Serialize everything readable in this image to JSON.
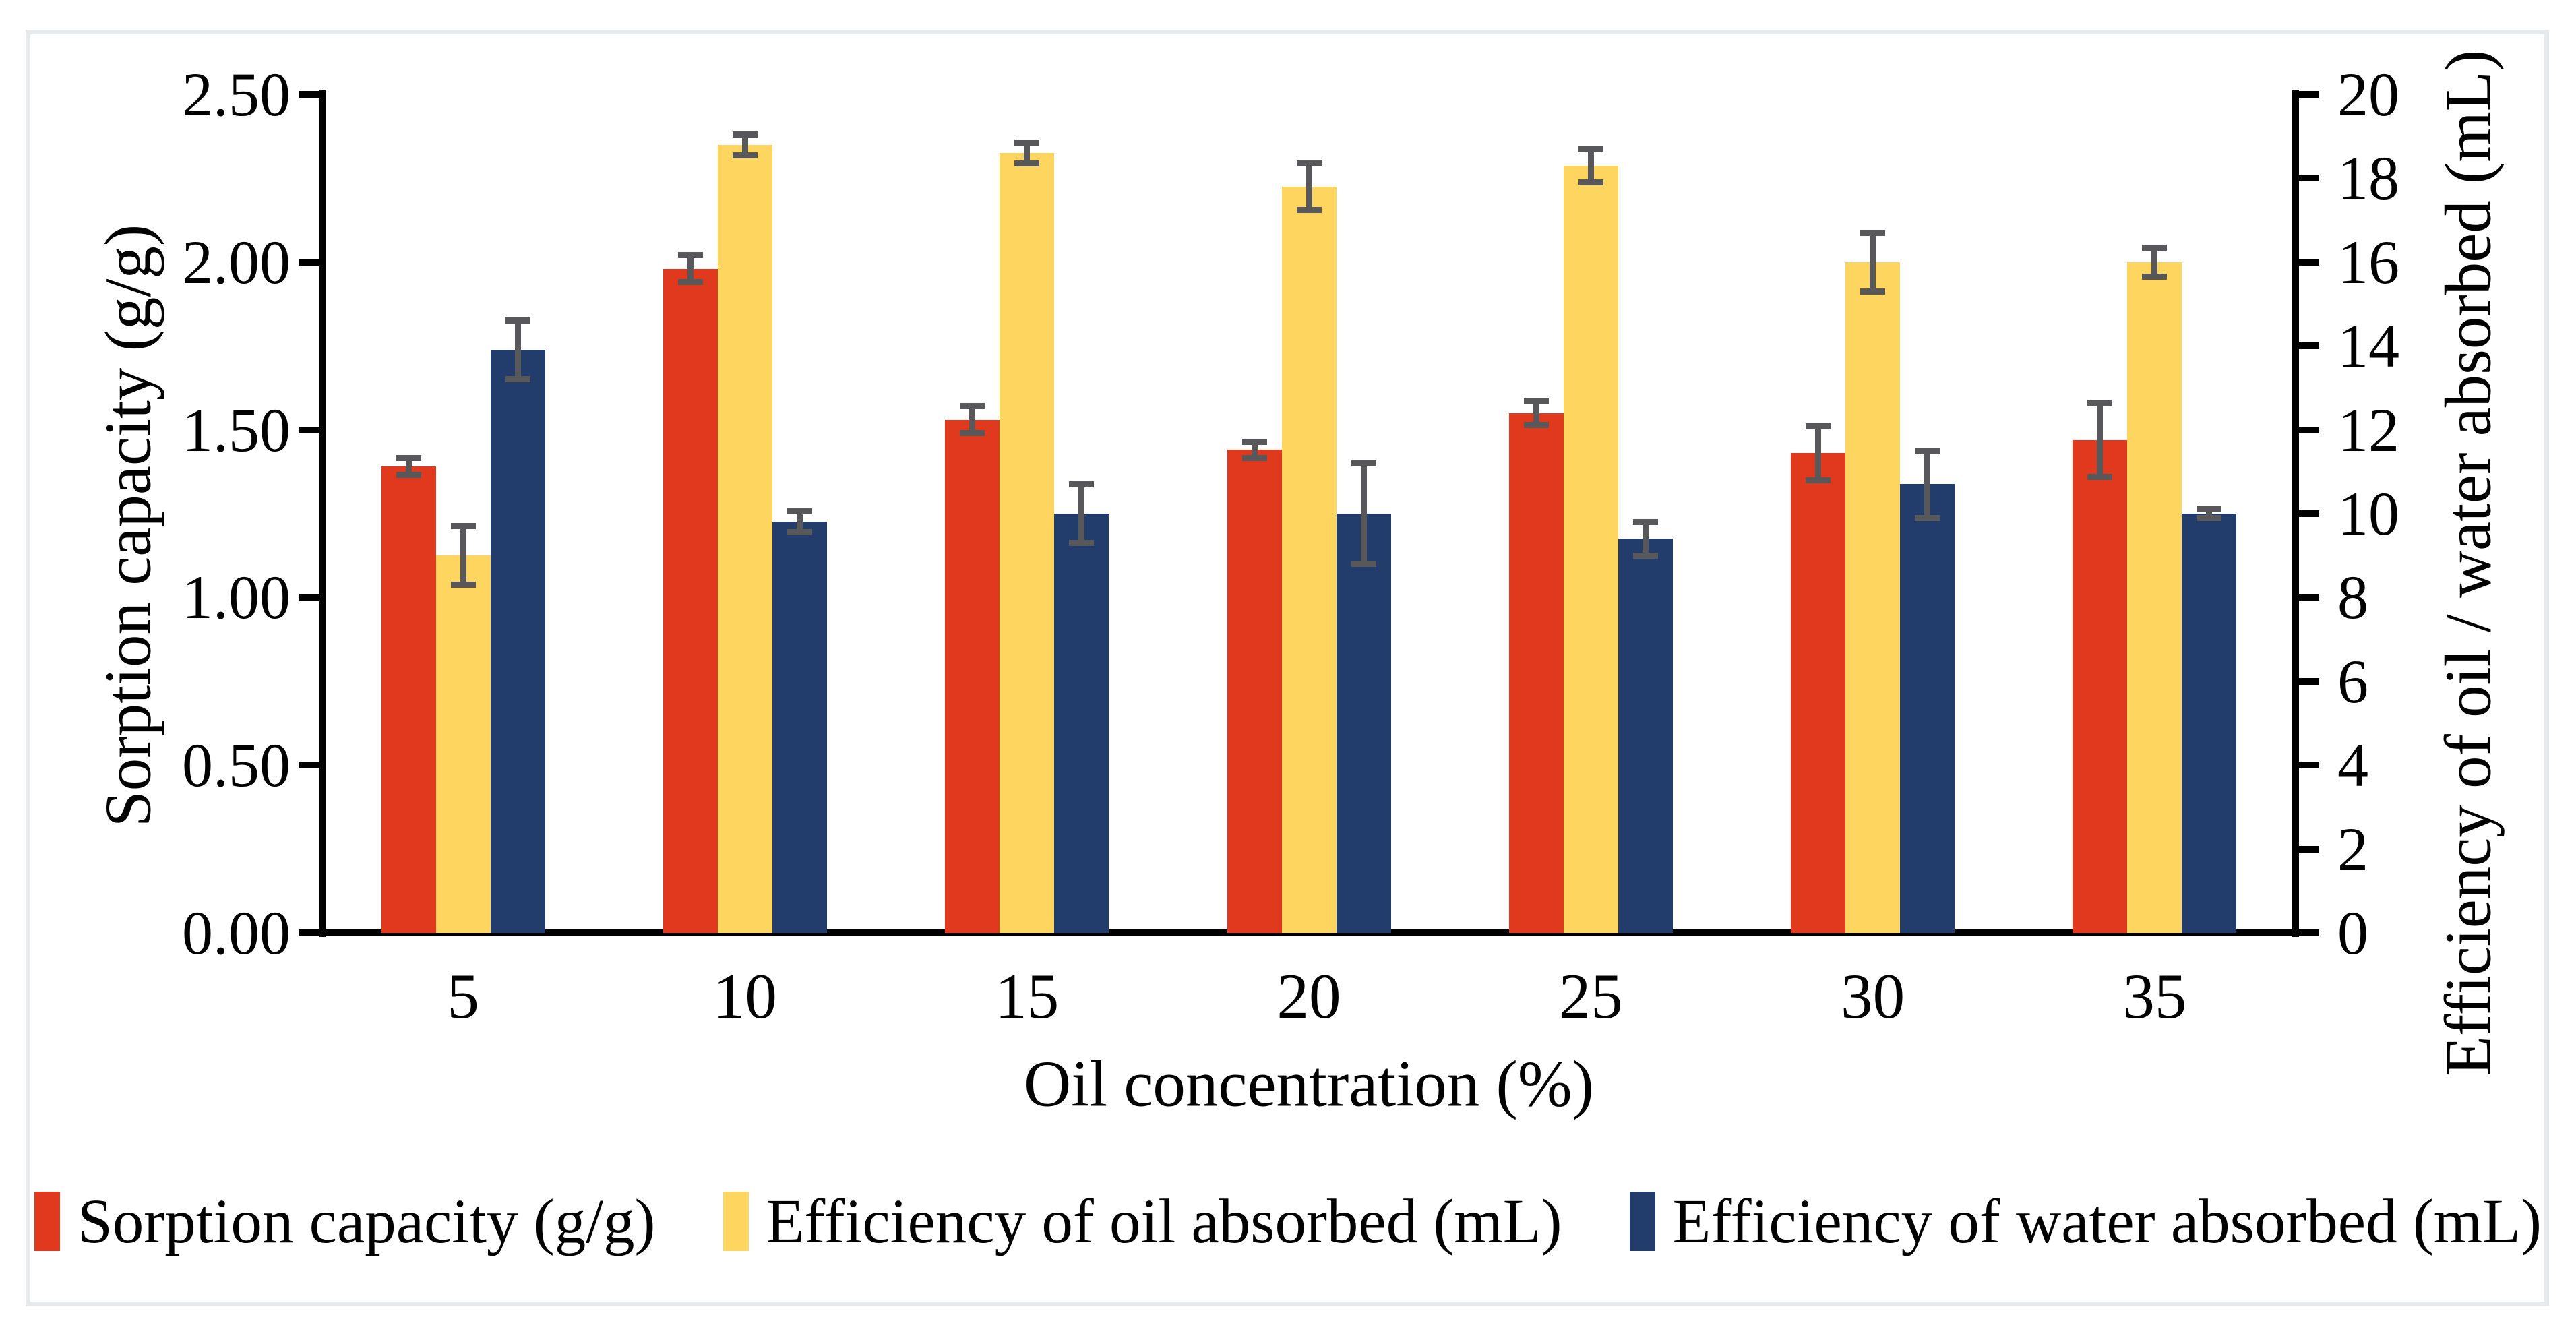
{
  "chart_data": {
    "type": "bar",
    "title": "",
    "categories": [
      "5",
      "10",
      "15",
      "20",
      "25",
      "30",
      "35"
    ],
    "xlabel": "Oil concentration (%)",
    "ylabel_left": "Sorption capacity (g/g)",
    "ylabel_right": "Efficiency of oil / water absorbed (mL)",
    "left_axis": {
      "min": 0,
      "max": 2.5,
      "tick_labels": [
        "0.00",
        "0.50",
        "1.00",
        "1.50",
        "2.00",
        "2.50"
      ]
    },
    "right_axis": {
      "min": 0,
      "max": 20,
      "tick_labels": [
        "0",
        "2",
        "4",
        "6",
        "8",
        "10",
        "12",
        "14",
        "16",
        "18",
        "20"
      ]
    },
    "grid": false,
    "legend_position": "bottom",
    "series": [
      {
        "key": "sorption",
        "name": "Sorption capacity (g/g)",
        "axis": "left",
        "color": "#e0391e",
        "values": [
          1.39,
          1.98,
          1.53,
          1.44,
          1.55,
          1.43,
          1.47
        ],
        "errors": [
          0.025,
          0.04,
          0.04,
          0.025,
          0.035,
          0.08,
          0.11
        ]
      },
      {
        "key": "oil",
        "name": "Efficiency of oil absorbed (mL)",
        "axis": "right",
        "color": "#fdd55f",
        "values": [
          9.0,
          18.8,
          18.6,
          17.8,
          18.3,
          16.0,
          16.0
        ],
        "errors": [
          0.7,
          0.25,
          0.25,
          0.55,
          0.4,
          0.7,
          0.35
        ]
      },
      {
        "key": "water",
        "name": "Efficiency of water absorbed (mL)",
        "axis": "right",
        "color": "#223c6b",
        "values": [
          13.9,
          9.8,
          10.0,
          10.0,
          9.4,
          10.7,
          10.0
        ],
        "errors": [
          0.7,
          0.25,
          0.7,
          1.2,
          0.4,
          0.8,
          0.1
        ]
      }
    ],
    "colors": {
      "axis": "#000000",
      "error_bar": "#58585a",
      "card_border": "#e8e9ea",
      "background": "#ffffff"
    }
  }
}
